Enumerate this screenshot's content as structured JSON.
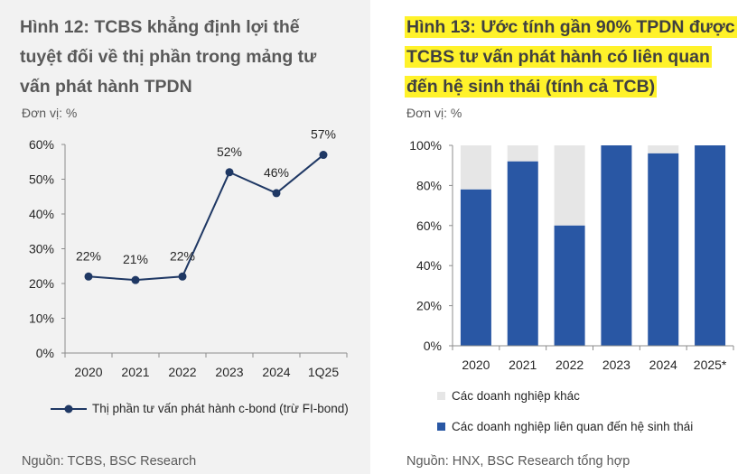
{
  "left": {
    "title_lines": [
      "Hình 12: TCBS khẳng định lợi thế",
      "tuyệt đối về thị phần trong mảng tư",
      "vấn phát hành TPDN"
    ],
    "unit": "Đơn vị: %",
    "source": "Nguồn: TCBS, BSC Research",
    "legend": "Thị phần tư vấn phát hành c-bond (trừ FI-bond)"
  },
  "right": {
    "title_lines": [
      "Hình 13: Ước tính gần 90% TPDN được",
      "TCBS tư vấn phát hành có liên quan",
      "đến hệ sinh thái (tính cả TCB)"
    ],
    "unit": "Đơn vị: %",
    "source": "Nguồn: HNX, BSC Research tổng hợp",
    "legend": [
      "Các doanh nghiệp khác",
      "Các doanh nghiệp liên quan đến hệ sinh thái"
    ]
  },
  "colors": {
    "line": "#1f3864",
    "bar_main": "#2957a4",
    "bar_other": "#e6e6e6",
    "highlight": "#fff22a"
  },
  "chart_data": [
    {
      "type": "line",
      "title": "Hình 12: TCBS khẳng định lợi thế tuyệt đối về thị phần trong mảng tư vấn phát hành TPDN",
      "categories": [
        "2020",
        "2021",
        "2022",
        "2023",
        "2024",
        "1Q25"
      ],
      "series": [
        {
          "name": "Thị phần tư vấn phát hành c-bond (trừ FI-bond)",
          "values": [
            22,
            21,
            22,
            52,
            46,
            57
          ]
        }
      ],
      "data_labels": [
        "22%",
        "21%",
        "22%",
        "52%",
        "46%",
        "57%"
      ],
      "ylim": [
        0,
        60
      ],
      "yticks": [
        0,
        10,
        20,
        30,
        40,
        50,
        60
      ],
      "ytick_labels": [
        "0%",
        "10%",
        "20%",
        "30%",
        "40%",
        "50%",
        "60%"
      ],
      "grid": false,
      "legend": "bottom"
    },
    {
      "type": "bar",
      "stacked": true,
      "title": "Hình 13: Ước tính gần 90% TPDN được TCBS tư vấn phát hành có liên quan đến hệ sinh thái (tính cả TCB)",
      "categories": [
        "2020",
        "2021",
        "2022",
        "2023",
        "2024",
        "2025*"
      ],
      "series": [
        {
          "name": "Các doanh nghiệp liên quan đến hệ sinh thái",
          "values": [
            78,
            92,
            60,
            100,
            96,
            100
          ]
        },
        {
          "name": "Các doanh nghiệp khác",
          "values": [
            22,
            8,
            40,
            0,
            4,
            0
          ]
        }
      ],
      "ylim": [
        0,
        100
      ],
      "yticks": [
        0,
        20,
        40,
        60,
        80,
        100
      ],
      "ytick_labels": [
        "0%",
        "20%",
        "40%",
        "60%",
        "80%",
        "100%"
      ],
      "grid": false,
      "legend": "bottom"
    }
  ]
}
